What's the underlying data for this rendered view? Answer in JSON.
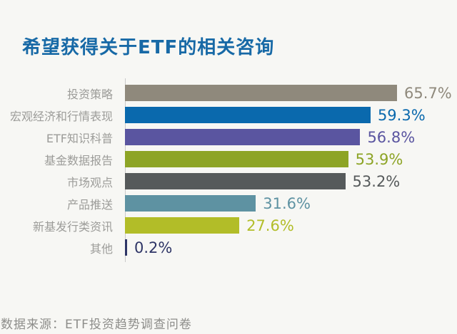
{
  "title": "希望获得关于ETF的相关咨询",
  "source_note": "数据来源：ETF投资趋势调查问卷",
  "colors": {
    "background": "#f7f7f4",
    "title_text": "#1769a6",
    "category_label": "#9c9c99",
    "axis_line": "#c9c9c9",
    "source_text": "#8d8d8a"
  },
  "chart_data": {
    "type": "bar",
    "orientation": "horizontal",
    "title": "希望获得关于ETF的相关咨询",
    "xlabel": "",
    "ylabel": "",
    "xlim": [
      0,
      70
    ],
    "grid": false,
    "legend": false,
    "value_label_position": "end-of-bar",
    "categories": [
      "投资策略",
      "宏观经济和行情表现",
      "ETF知识科普",
      "基金数据报告",
      "市场观点",
      "产品推送",
      "新基发行类资讯",
      "其他"
    ],
    "values": [
      65.7,
      59.3,
      56.8,
      53.9,
      53.2,
      31.6,
      27.6,
      0.2
    ],
    "value_labels": [
      "65.7%",
      "59.3%",
      "56.8%",
      "53.9%",
      "53.2%",
      "31.6%",
      "27.6%",
      "0.2%"
    ],
    "bar_colors": [
      "#8f897c",
      "#0a69ad",
      "#5a55a0",
      "#8da426",
      "#565a5b",
      "#5e92a2",
      "#b2bd28",
      "#2e3566"
    ]
  }
}
